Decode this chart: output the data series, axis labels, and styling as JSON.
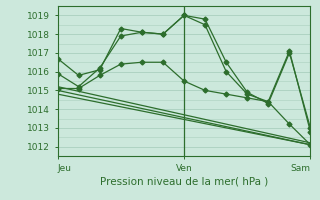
{
  "title": "Pression niveau de la mer( hPa )",
  "bg_color": "#cce8dc",
  "grid_color": "#aacfbf",
  "line_color": "#2d6e2d",
  "marker_color": "#2d6e2d",
  "ylim": [
    1011.5,
    1019.5
  ],
  "yticks": [
    1012,
    1013,
    1014,
    1015,
    1016,
    1017,
    1018,
    1019
  ],
  "xlim": [
    0.0,
    1.0
  ],
  "xlabel_ticks": [
    0.0,
    0.5,
    1.0
  ],
  "xlabel_labels": [
    "Jeu",
    "Ven",
    "Sam"
  ],
  "vline_positions": [
    0.5
  ],
  "series": [
    {
      "x": [
        0.0,
        0.083,
        0.167,
        0.25,
        0.333,
        0.417,
        0.5,
        0.583,
        0.667,
        0.75,
        0.833,
        0.917,
        1.0
      ],
      "y": [
        1016.7,
        1015.8,
        1016.1,
        1018.3,
        1018.1,
        1018.0,
        1019.0,
        1018.8,
        1016.5,
        1014.9,
        1014.3,
        1017.0,
        1013.0
      ],
      "markers": true
    },
    {
      "x": [
        0.0,
        0.083,
        0.167,
        0.25,
        0.333,
        0.417,
        0.5,
        0.583,
        0.667,
        0.75,
        0.833,
        0.917,
        1.0
      ],
      "y": [
        1015.9,
        1015.2,
        1016.2,
        1017.9,
        1018.1,
        1018.0,
        1019.0,
        1018.5,
        1016.0,
        1014.8,
        1014.4,
        1017.1,
        1012.8
      ],
      "markers": true
    },
    {
      "x": [
        0.0,
        0.083,
        0.167,
        0.25,
        0.333,
        0.417,
        0.5,
        0.583,
        0.667,
        0.75,
        0.833,
        0.917,
        1.0
      ],
      "y": [
        1015.1,
        1015.1,
        1015.8,
        1016.4,
        1016.5,
        1016.5,
        1015.5,
        1015.0,
        1014.8,
        1014.6,
        1014.4,
        1013.2,
        1012.1
      ],
      "markers": true
    },
    {
      "x": [
        0.0,
        1.0
      ],
      "y": [
        1015.2,
        1012.2
      ],
      "markers": false
    },
    {
      "x": [
        0.0,
        1.0
      ],
      "y": [
        1015.0,
        1012.1
      ],
      "markers": false
    },
    {
      "x": [
        0.0,
        1.0
      ],
      "y": [
        1014.8,
        1012.1
      ],
      "markers": false
    }
  ]
}
